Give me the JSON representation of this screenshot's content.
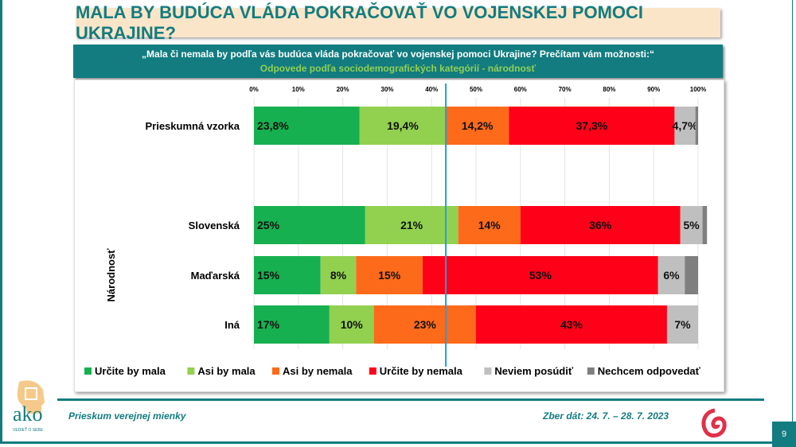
{
  "title": "MALA BY BUDÚCA VLÁDA POKRAČOVAŤ VO VOJENSKEJ POMOCI UKRAJINE?",
  "question": "„Mala či nemala by podľa vás budúca vláda pokračovať vo vojenskej pomoci Ukrajine? Prečítam vám možnosti:“",
  "subtitle": "Odpovede podľa sociodemografických kategórií - národnosť",
  "footer": {
    "left": "Prieskum verejnej mienky",
    "right": "Zber dát: 24. 7. – 28. 7. 2023",
    "page": "9",
    "logo_text": "ako",
    "logo_tagline": "VEDIEŤ O SEBE"
  },
  "chart_data": {
    "type": "bar",
    "orientation": "horizontal",
    "stacked": "percent",
    "xlim": [
      0,
      100
    ],
    "ticks": [
      "0%",
      "10%",
      "20%",
      "30%",
      "40%",
      "50%",
      "60%",
      "70%",
      "80%",
      "90%",
      "100%"
    ],
    "group_label": "Národnosť",
    "reference_line": 43.2,
    "legend_position": "bottom",
    "series": [
      {
        "name": "Určite by mala",
        "color": "#17b050"
      },
      {
        "name": "Asi by mala",
        "color": "#92d050"
      },
      {
        "name": "Asi by nemala",
        "color": "#fd6a1a"
      },
      {
        "name": "Určite by nemala",
        "color": "#ff0019"
      },
      {
        "name": "Neviem posúdiť",
        "color": "#bfbfbf"
      },
      {
        "name": "Nechcem odpovedať",
        "color": "#7f7f7f"
      }
    ],
    "rows": [
      {
        "category": "Prieskumná vzorka",
        "values": [
          23.8,
          19.4,
          14.2,
          37.3,
          4.7,
          0.6
        ],
        "labels": [
          "23,8%",
          "19,4%",
          "14,2%",
          "37,3%",
          "4,7%",
          ""
        ]
      },
      {
        "category": "Slovenská",
        "values": [
          25,
          21,
          14,
          36,
          5,
          1
        ],
        "labels": [
          "25%",
          "21%",
          "14%",
          "36%",
          "5%",
          ""
        ]
      },
      {
        "category": "Maďarská",
        "values": [
          15,
          8,
          15,
          53,
          6,
          3
        ],
        "labels": [
          "15%",
          "8%",
          "15%",
          "53%",
          "6%",
          ""
        ]
      },
      {
        "category": "Iná",
        "values": [
          17,
          10,
          23,
          43,
          7,
          0
        ],
        "labels": [
          "17%",
          "10%",
          "23%",
          "43%",
          "7%",
          ""
        ]
      }
    ]
  }
}
